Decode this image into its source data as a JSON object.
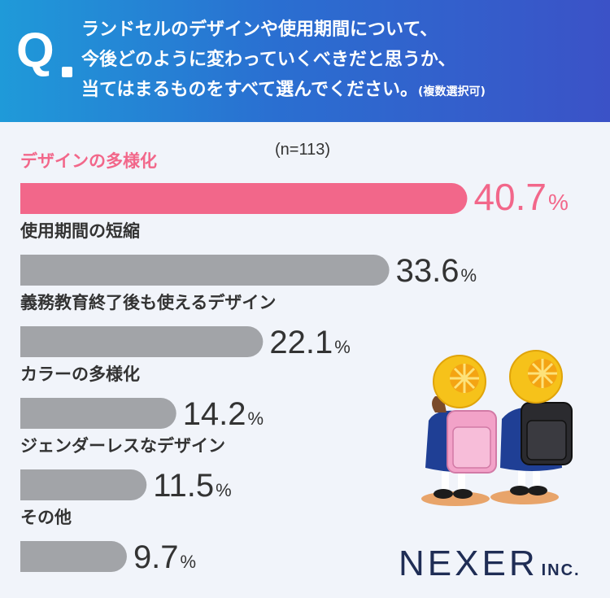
{
  "header": {
    "q_letter": "Q",
    "line1": "ランドセルのデザインや使用期間について、",
    "line2": "今後どのように変わっていくべきだと思うか、",
    "line3": "当てはまるものをすべて選んでください。",
    "line3_note": "(複数選択可)"
  },
  "logo": {
    "main": "NEXER",
    "suffix": "INC."
  },
  "chart_data": {
    "type": "bar",
    "orientation": "horizontal",
    "sample_note": "(n=113)",
    "categories": [
      "デザインの多様化",
      "使用期間の短縮",
      "義務教育終了後も使えるデザイン",
      "カラーの多様化",
      "ジェンダーレスなデザイン",
      "その他"
    ],
    "values": [
      40.7,
      33.6,
      22.1,
      14.2,
      11.5,
      9.7
    ],
    "unit": "%",
    "highlight_index": 0,
    "colors": {
      "highlight": "#f2678a",
      "default": "#a2a4a8",
      "highlight_text": "#f2678a",
      "default_text": "#333333"
    }
  }
}
